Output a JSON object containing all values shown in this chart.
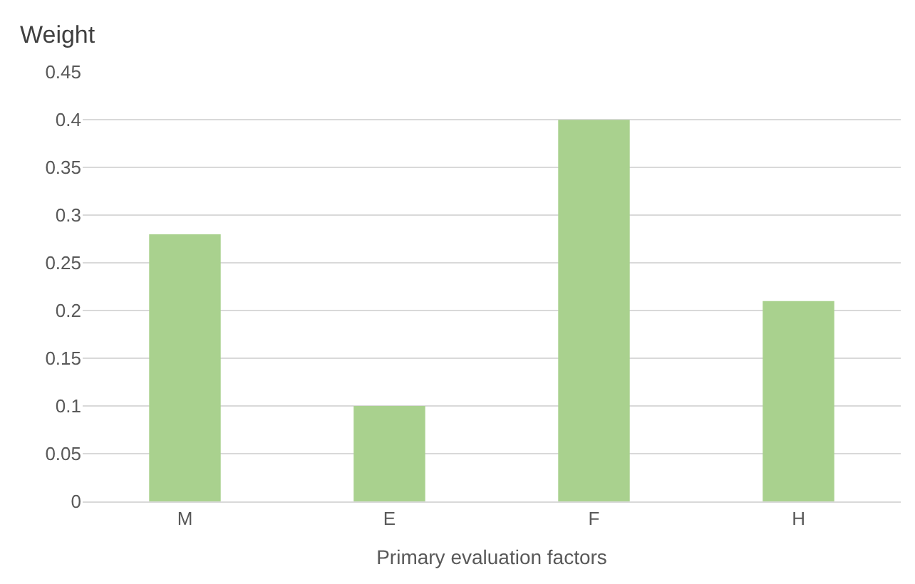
{
  "chart_data": {
    "type": "bar",
    "ylabel": "Weight",
    "xlabel": "Primary evaluation factors",
    "categories": [
      "M",
      "E",
      "F",
      "H"
    ],
    "values": [
      0.28,
      0.1,
      0.4,
      0.21
    ],
    "color": "#a9d18e",
    "ylim": [
      0,
      0.45
    ],
    "yticks": [
      0,
      0.05,
      0.1,
      0.15,
      0.2,
      0.25,
      0.3,
      0.35,
      0.4,
      0.45
    ],
    "grid": "y"
  }
}
